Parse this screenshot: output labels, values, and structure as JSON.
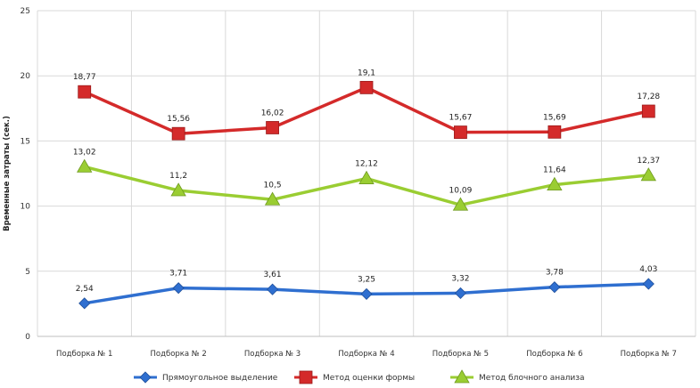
{
  "chart_data": {
    "type": "line",
    "title": "",
    "ylabel": "Временные затраты (сек.)",
    "xlabel": "",
    "ylim": [
      0,
      25
    ],
    "yticks": [
      0,
      5,
      10,
      15,
      20,
      25
    ],
    "grid": true,
    "legend_position": "bottom",
    "categories": [
      "Подборка № 1",
      "Подборка № 2",
      "Подборка № 3",
      "Подборка № 4",
      "Подборка № 5",
      "Подборка № 6",
      "Подборка № 7"
    ],
    "series": [
      {
        "name": "Прямоугольное выделение",
        "color": "#2f6fd0",
        "marker": "diamond",
        "values": [
          2.54,
          3.71,
          3.61,
          3.25,
          3.32,
          3.78,
          4.03
        ],
        "labels": [
          "2,54",
          "3,71",
          "3,61",
          "3,25",
          "3,32",
          "3,78",
          "4,03"
        ]
      },
      {
        "name": "Метод оценки формы",
        "color": "#d42a2a",
        "marker": "square",
        "values": [
          18.77,
          15.56,
          16.02,
          19.1,
          15.67,
          15.69,
          17.28
        ],
        "labels": [
          "18,77",
          "15,56",
          "16,02",
          "19,1",
          "15,67",
          "15,69",
          "17,28"
        ]
      },
      {
        "name": "Метод блочного анализа",
        "color": "#9acd32",
        "marker": "triangle",
        "values": [
          13.02,
          11.2,
          10.5,
          12.12,
          10.09,
          11.64,
          12.37
        ],
        "labels": [
          "13,02",
          "11,2",
          "10,5",
          "12,12",
          "10,09",
          "11,64",
          "12,37"
        ]
      }
    ]
  }
}
